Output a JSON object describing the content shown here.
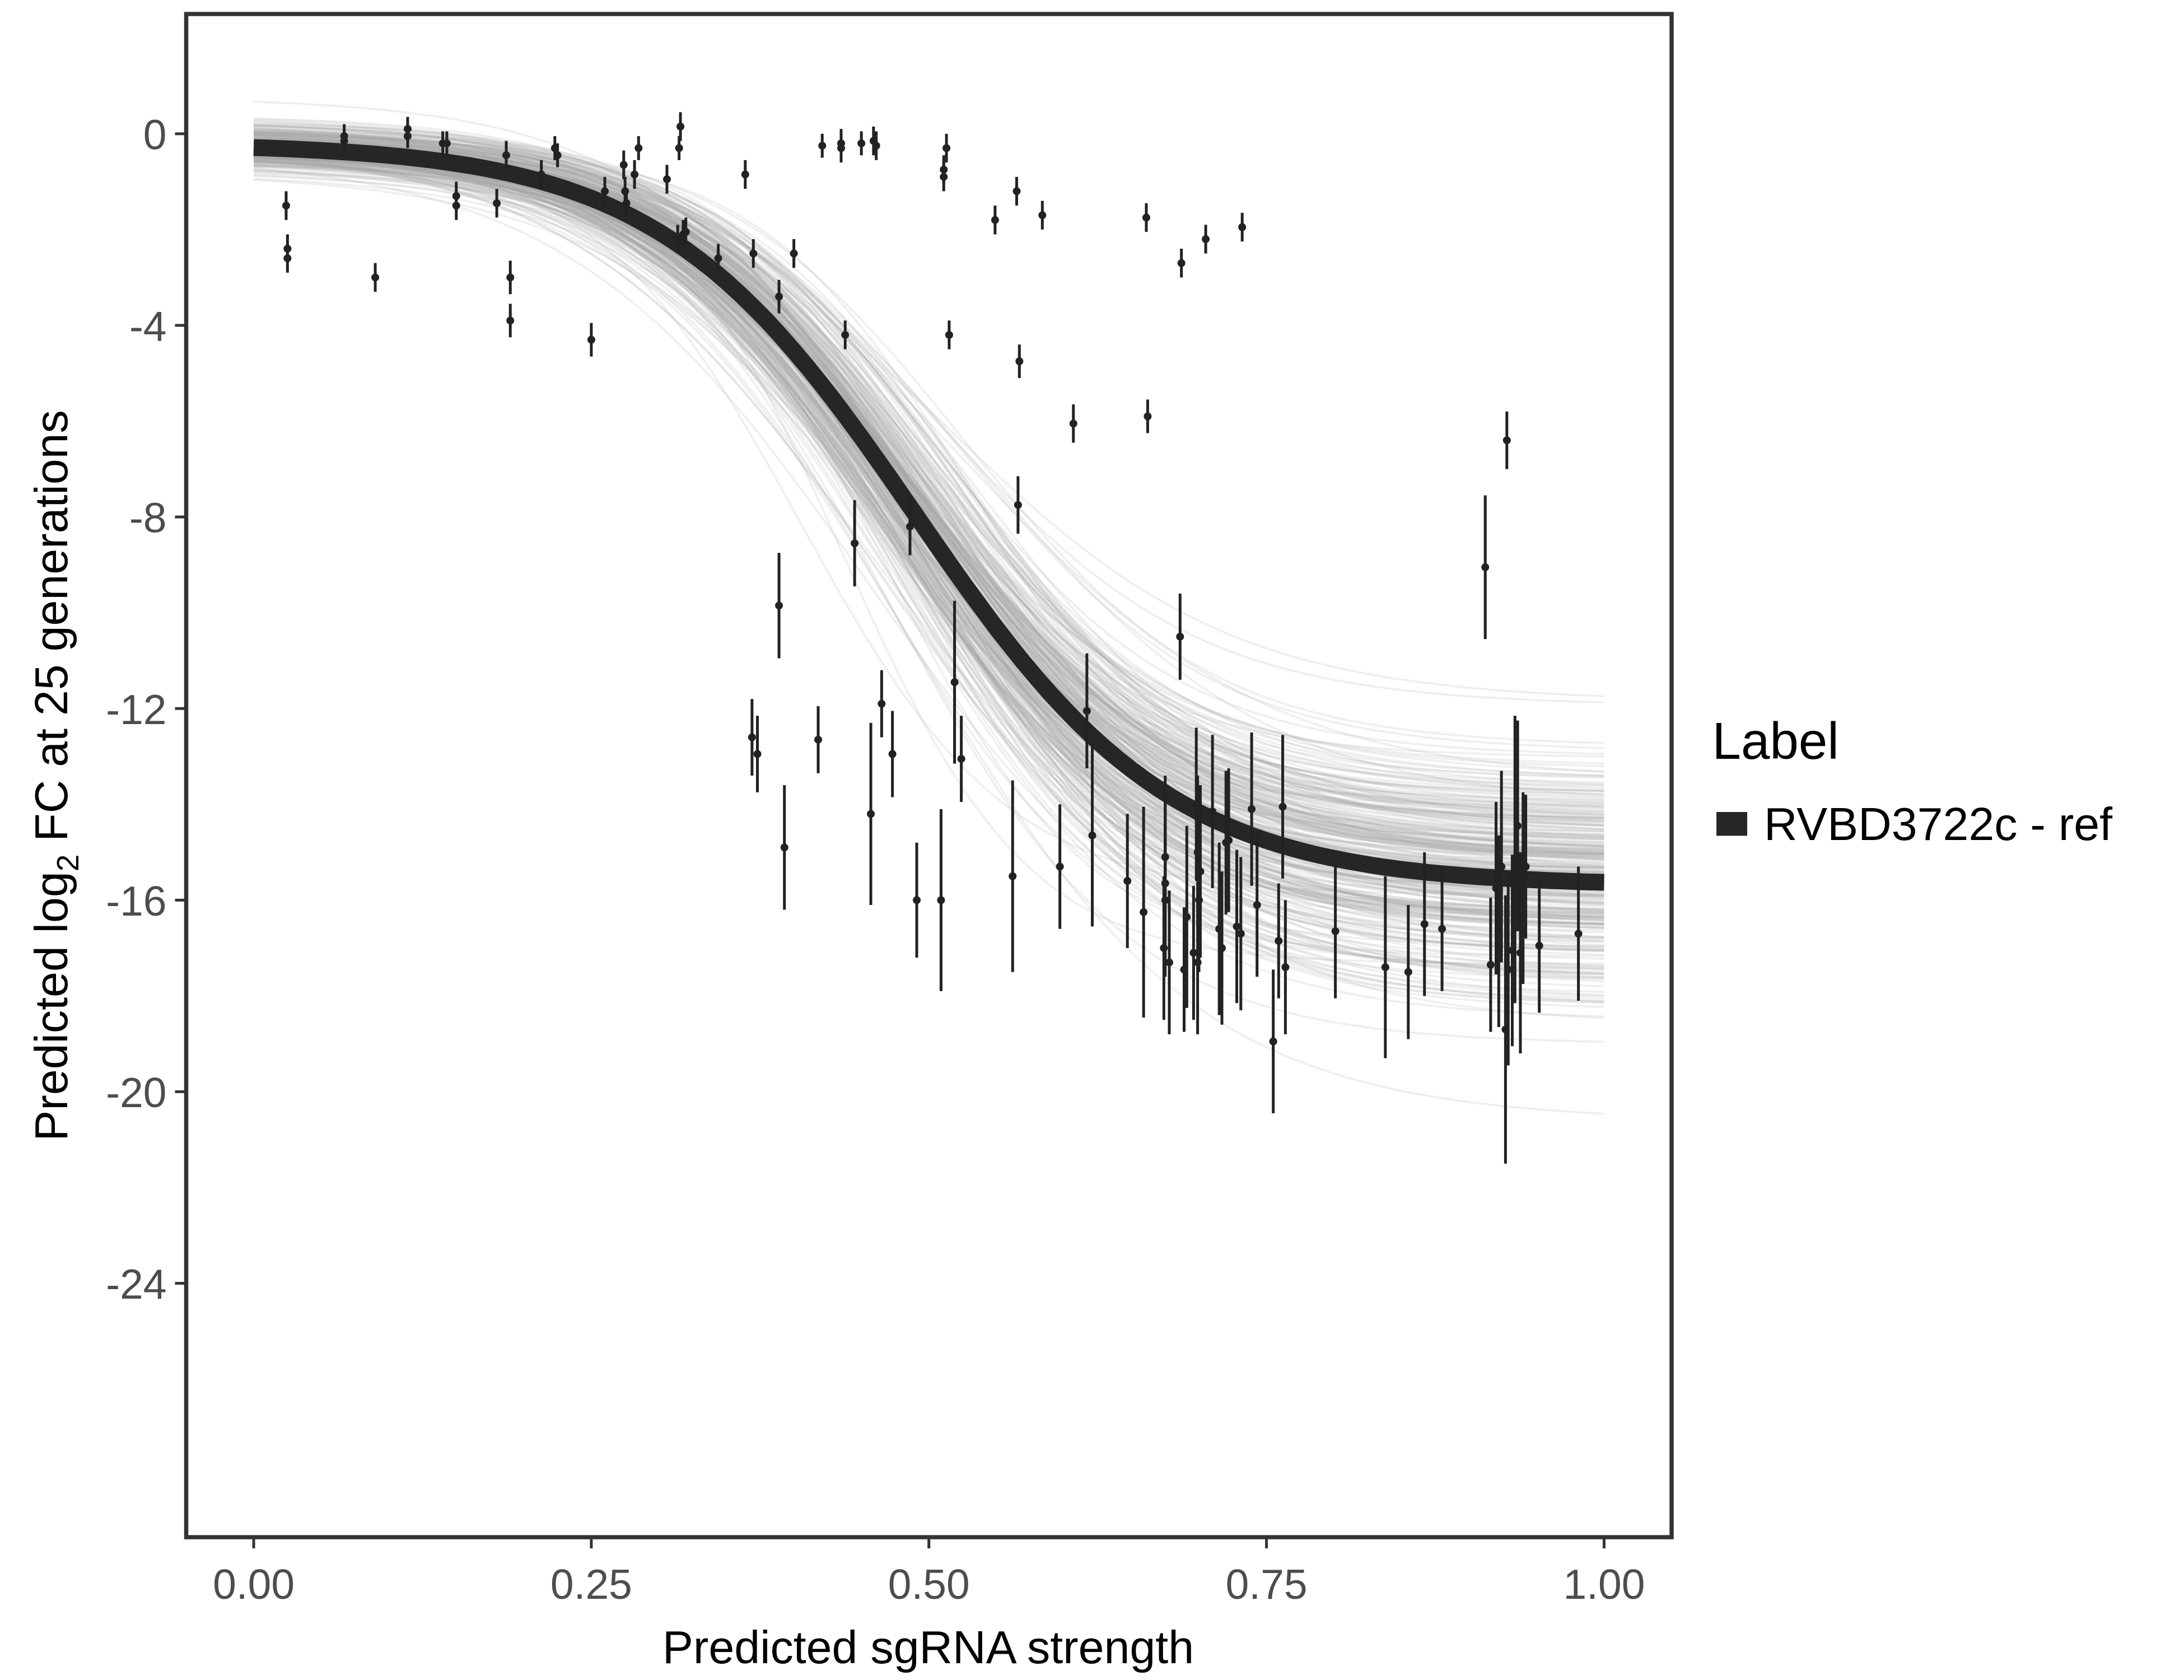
{
  "chart_data": {
    "type": "scatter",
    "title": "",
    "xlabel": "Predicted sgRNA strength",
    "ylabel_prefix": "Predicted  log",
    "ylabel_sub": "2",
    "ylabel_suffix": " FC at 25 generations",
    "xlim": [
      -0.05,
      1.05
    ],
    "ylim": [
      -29.3,
      2.5
    ],
    "xticks": [
      0,
      0.25,
      0.5,
      0.75,
      1
    ],
    "xtick_labels": [
      "0.00",
      "0.25",
      "0.50",
      "0.75",
      "1.00"
    ],
    "yticks": [
      0,
      -4,
      -8,
      -12,
      -16,
      -20,
      -24
    ],
    "ytick_labels": [
      "0",
      "-4",
      "-8",
      "-12",
      "-16",
      "-20",
      "-24"
    ],
    "grid": false,
    "legend": {
      "title": "Label",
      "placement": "right",
      "entries": [
        {
          "label": "RVBD3722c - ref",
          "color": "#262626"
        }
      ]
    },
    "fit_curve": {
      "form": "logistic",
      "upper": -0.2,
      "amplitude": -15.5,
      "midpoint": 0.49,
      "scale": 0.095,
      "color": "#262626"
    },
    "posterior_band": {
      "draws": 300,
      "color": "#a6a6a6"
    },
    "points_columns": [
      "x",
      "y",
      "se"
    ],
    "points": [
      [
        0.024,
        -1.5,
        0.3
      ],
      [
        0.025,
        -2.4,
        0.3
      ],
      [
        0.025,
        -2.6,
        0.3
      ],
      [
        0.067,
        -0.05,
        0.25
      ],
      [
        0.067,
        -0.15,
        0.25
      ],
      [
        0.09,
        -3.0,
        0.3
      ],
      [
        0.114,
        0.1,
        0.25
      ],
      [
        0.114,
        -0.05,
        0.25
      ],
      [
        0.14,
        -0.2,
        0.25
      ],
      [
        0.143,
        -0.2,
        0.25
      ],
      [
        0.15,
        -1.3,
        0.3
      ],
      [
        0.15,
        -1.5,
        0.3
      ],
      [
        0.18,
        -1.45,
        0.3
      ],
      [
        0.187,
        -0.45,
        0.3
      ],
      [
        0.19,
        -3.0,
        0.35
      ],
      [
        0.19,
        -3.9,
        0.35
      ],
      [
        0.213,
        -0.85,
        0.3
      ],
      [
        0.223,
        -0.3,
        0.25
      ],
      [
        0.225,
        -0.45,
        0.25
      ],
      [
        0.25,
        -4.3,
        0.35
      ],
      [
        0.26,
        -1.2,
        0.3
      ],
      [
        0.274,
        -0.65,
        0.3
      ],
      [
        0.275,
        -1.2,
        0.3
      ],
      [
        0.276,
        -1.45,
        0.3
      ],
      [
        0.282,
        -0.85,
        0.3
      ],
      [
        0.285,
        -0.3,
        0.25
      ],
      [
        0.306,
        -0.95,
        0.3
      ],
      [
        0.315,
        -0.3,
        0.25
      ],
      [
        0.316,
        0.15,
        0.3
      ],
      [
        0.314,
        -2.2,
        0.3
      ],
      [
        0.318,
        -2.1,
        0.3
      ],
      [
        0.32,
        -2.05,
        0.3
      ],
      [
        0.344,
        -2.6,
        0.3
      ],
      [
        0.364,
        -0.85,
        0.3
      ],
      [
        0.37,
        -2.5,
        0.3
      ],
      [
        0.4,
        -2.5,
        0.3
      ],
      [
        0.421,
        -0.25,
        0.25
      ],
      [
        0.435,
        -0.3,
        0.3
      ],
      [
        0.435,
        -0.2,
        0.3
      ],
      [
        0.389,
        -3.4,
        0.35
      ],
      [
        0.389,
        -9.85,
        1.1
      ],
      [
        0.369,
        -12.6,
        0.8
      ],
      [
        0.373,
        -12.95,
        0.8
      ],
      [
        0.393,
        -14.9,
        1.3
      ],
      [
        0.418,
        -12.65,
        0.7
      ],
      [
        0.438,
        -4.2,
        0.3
      ],
      [
        0.445,
        -8.55,
        0.9
      ],
      [
        0.45,
        -0.2,
        0.25
      ],
      [
        0.459,
        -0.15,
        0.3
      ],
      [
        0.461,
        -0.25,
        0.3
      ],
      [
        0.457,
        -14.2,
        1.9
      ],
      [
        0.465,
        -11.9,
        0.7
      ],
      [
        0.473,
        -12.95,
        0.9
      ],
      [
        0.486,
        -8.2,
        0.6
      ],
      [
        0.491,
        -16.0,
        1.2
      ],
      [
        0.509,
        -16.0,
        1.9
      ],
      [
        0.511,
        -0.75,
        0.3
      ],
      [
        0.511,
        -0.9,
        0.3
      ],
      [
        0.513,
        -0.3,
        0.3
      ],
      [
        0.515,
        -4.2,
        0.3
      ],
      [
        0.519,
        -11.45,
        1.7
      ],
      [
        0.524,
        -13.05,
        0.9
      ],
      [
        0.549,
        -1.8,
        0.3
      ],
      [
        0.562,
        -15.5,
        2.0
      ],
      [
        0.565,
        -1.2,
        0.3
      ],
      [
        0.567,
        -4.75,
        0.35
      ],
      [
        0.566,
        -7.75,
        0.6
      ],
      [
        0.584,
        -1.7,
        0.3
      ],
      [
        0.597,
        -15.3,
        1.3
      ],
      [
        0.607,
        -6.05,
        0.4
      ],
      [
        0.617,
        -12.05,
        1.2
      ],
      [
        0.621,
        -14.65,
        1.9
      ],
      [
        0.647,
        -15.6,
        1.4
      ],
      [
        0.659,
        -16.25,
        2.2
      ],
      [
        0.661,
        -1.75,
        0.3
      ],
      [
        0.662,
        -5.9,
        0.35
      ],
      [
        0.675,
        -15.1,
        1.7
      ],
      [
        0.675,
        -15.65,
        1.7
      ],
      [
        0.675,
        -16.0,
        1.6
      ],
      [
        0.674,
        -17.0,
        1.5
      ],
      [
        0.678,
        -17.3,
        1.5
      ],
      [
        0.686,
        -10.5,
        0.9
      ],
      [
        0.687,
        -2.7,
        0.3
      ],
      [
        0.689,
        -17.45,
        1.3
      ],
      [
        0.691,
        -16.35,
        1.9
      ],
      [
        0.696,
        -17.1,
        1.4
      ],
      [
        0.699,
        -17.3,
        1.5
      ],
      [
        0.698,
        -14.0,
        1.6
      ],
      [
        0.699,
        -15.0,
        1.6
      ],
      [
        0.701,
        -15.4,
        1.8
      ],
      [
        0.7,
        -16.0,
        1.5
      ],
      [
        0.705,
        -2.2,
        0.3
      ],
      [
        0.71,
        -14.15,
        1.6
      ],
      [
        0.715,
        -16.6,
        1.8
      ],
      [
        0.717,
        -17.0,
        1.6
      ],
      [
        0.72,
        -14.8,
        1.5
      ],
      [
        0.722,
        -14.75,
        1.5
      ],
      [
        0.728,
        -16.55,
        1.6
      ],
      [
        0.731,
        -16.7,
        1.6
      ],
      [
        0.732,
        -1.95,
        0.3
      ],
      [
        0.739,
        -14.1,
        1.6
      ],
      [
        0.743,
        -16.1,
        1.5
      ],
      [
        0.755,
        -18.95,
        1.5
      ],
      [
        0.759,
        -16.85,
        1.2
      ],
      [
        0.762,
        -14.05,
        1.5
      ],
      [
        0.764,
        -17.4,
        1.4
      ],
      [
        0.801,
        -16.65,
        1.4
      ],
      [
        0.838,
        -17.4,
        1.9
      ],
      [
        0.855,
        -17.5,
        1.4
      ],
      [
        0.867,
        -16.5,
        1.5
      ],
      [
        0.88,
        -16.6,
        1.3
      ],
      [
        0.912,
        -9.05,
        1.5
      ],
      [
        0.916,
        -17.35,
        1.4
      ],
      [
        0.92,
        -15.75,
        1.8
      ],
      [
        0.922,
        -16.65,
        2.0
      ],
      [
        0.924,
        -15.3,
        2.0
      ],
      [
        0.927,
        -18.7,
        2.8
      ],
      [
        0.928,
        -6.4,
        0.6
      ],
      [
        0.929,
        -17.45,
        2.0
      ],
      [
        0.932,
        -17.05,
        2.0
      ],
      [
        0.934,
        -15.15,
        3.0
      ],
      [
        0.936,
        -14.45,
        2.2
      ],
      [
        0.938,
        -17.1,
        2.1
      ],
      [
        0.94,
        -15.75,
        2.0
      ],
      [
        0.942,
        -15.3,
        1.5
      ],
      [
        0.952,
        -16.95,
        1.4
      ],
      [
        0.981,
        -16.7,
        1.4
      ]
    ]
  }
}
